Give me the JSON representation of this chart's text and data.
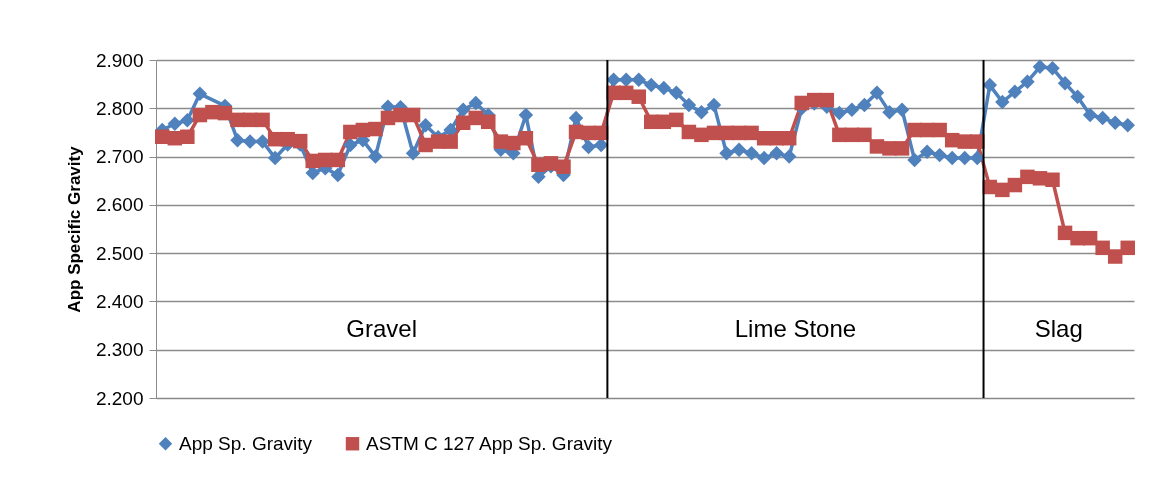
{
  "chart_data": {
    "type": "line",
    "ylabel": "App Specific Gravity",
    "categories": [
      null,
      null,
      null,
      null,
      null,
      null,
      null,
      null,
      null,
      null,
      null,
      null,
      null,
      null,
      null,
      null,
      null,
      null,
      null,
      null,
      null,
      null,
      null,
      null,
      null,
      null,
      null,
      null,
      null,
      null,
      null,
      null,
      null,
      null,
      null,
      null,
      null,
      null,
      null,
      null,
      null,
      null,
      null,
      null,
      null,
      null,
      null,
      null,
      null,
      null,
      null,
      null,
      null,
      null,
      null,
      null,
      null,
      null,
      null,
      null,
      null,
      null,
      null,
      null,
      null,
      null,
      null,
      null,
      null,
      null,
      null,
      null,
      null,
      null,
      null,
      null,
      null,
      null
    ],
    "series": [
      {
        "name": "App Sp. Gravity",
        "color": "#4f81bd",
        "marker": "diamond",
        "values": [
          2.755,
          2.768,
          2.775,
          2.83,
          null,
          2.805,
          2.734,
          2.731,
          2.731,
          2.697,
          2.725,
          2.725,
          2.666,
          2.676,
          2.662,
          2.724,
          2.734,
          2.7,
          2.803,
          2.802,
          2.707,
          2.765,
          2.74,
          2.755,
          2.797,
          2.811,
          2.786,
          2.714,
          2.707,
          2.786,
          2.658,
          2.68,
          2.662,
          2.78,
          2.72,
          2.724,
          2.859,
          2.859,
          2.859,
          2.848,
          2.842,
          2.832,
          2.807,
          2.792,
          2.807,
          2.707,
          2.714,
          2.707,
          2.697,
          2.707,
          2.7,
          2.8,
          2.81,
          2.803,
          2.79,
          2.797,
          2.807,
          2.832,
          2.792,
          2.797,
          2.693,
          2.71,
          2.703,
          2.697,
          2.697,
          2.697,
          2.848,
          2.813,
          2.834,
          2.855,
          2.886,
          2.883,
          2.852,
          2.824,
          2.786,
          2.78,
          2.77,
          2.765
        ]
      },
      {
        "name": "ASTM C 127 App Sp. Gravity",
        "color": "#c0504d",
        "marker": "square",
        "values": [
          2.741,
          2.738,
          2.741,
          2.786,
          2.792,
          2.79,
          2.776,
          2.776,
          2.776,
          2.736,
          2.736,
          2.732,
          2.691,
          2.693,
          2.693,
          2.751,
          2.755,
          2.757,
          2.78,
          2.786,
          2.786,
          2.724,
          2.731,
          2.731,
          2.77,
          2.78,
          2.772,
          2.731,
          2.728,
          2.738,
          2.683,
          2.686,
          2.679,
          2.751,
          2.749,
          2.749,
          2.832,
          2.832,
          2.824,
          2.772,
          2.772,
          2.776,
          2.751,
          2.745,
          2.749,
          2.749,
          2.749,
          2.749,
          2.738,
          2.738,
          2.738,
          2.811,
          2.817,
          2.817,
          2.745,
          2.745,
          2.745,
          2.721,
          2.717,
          2.717,
          2.755,
          2.755,
          2.755,
          2.734,
          2.731,
          2.731,
          2.637,
          2.631,
          2.641,
          2.658,
          2.655,
          2.652,
          2.542,
          2.531,
          2.531,
          2.511,
          2.493,
          2.511
        ]
      }
    ],
    "ylim": [
      2.2,
      2.9
    ],
    "yticks": [
      {
        "value": 2.2,
        "label": "2.200"
      },
      {
        "value": 2.3,
        "label": "2.300"
      },
      {
        "value": 2.4,
        "label": "2.400"
      },
      {
        "value": 2.5,
        "label": "2.500"
      },
      {
        "value": 2.6,
        "label": "2.600"
      },
      {
        "value": 2.7,
        "label": "2.700"
      },
      {
        "value": 2.8,
        "label": "2.800"
      },
      {
        "value": 2.9,
        "label": "2.900"
      }
    ],
    "annotations": [
      "Gravel",
      "Lime Stone",
      "Slag"
    ],
    "grid": "y",
    "legend": "bottom",
    "tick_labels": "y"
  }
}
